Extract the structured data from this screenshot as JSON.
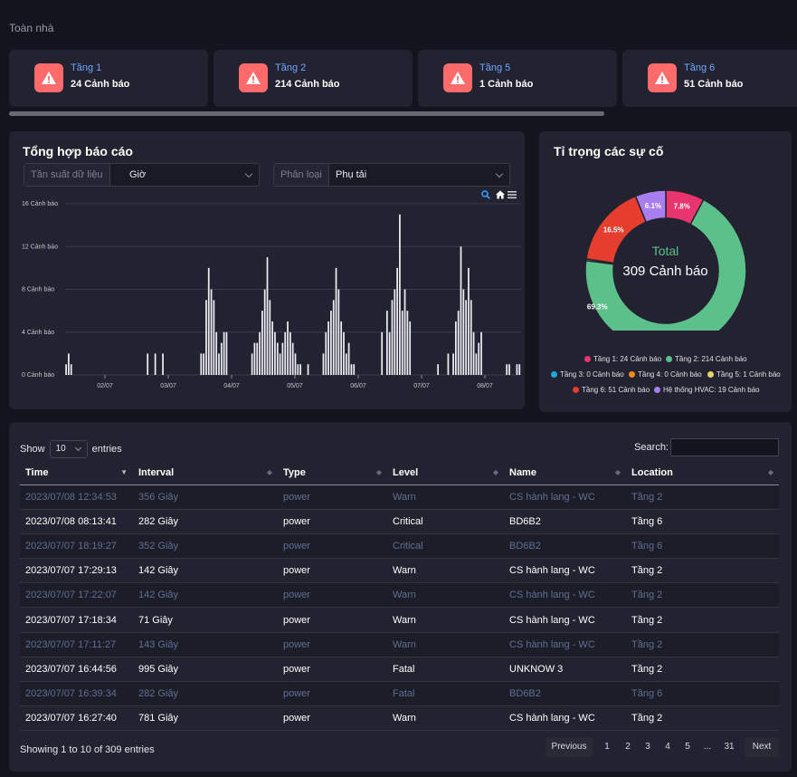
{
  "breadcrumb": "Toàn nhà",
  "alert_cards": [
    {
      "name": "Tầng 1",
      "count": "24 Cảnh báo"
    },
    {
      "name": "Tầng 2",
      "count": "214 Cảnh báo"
    },
    {
      "name": "Tầng 5",
      "count": "1 Cảnh báo"
    },
    {
      "name": "Tầng 6",
      "count": "51 Cảnh báo"
    }
  ],
  "report": {
    "title": "Tổng hợp báo cáo",
    "freq_label": "Tần suất dữ liệu",
    "freq_value": "Giờ",
    "class_label": "Phân loại",
    "class_value": "Phụ tải"
  },
  "chart_data": {
    "type": "bar",
    "ylim": [
      0,
      16
    ],
    "yticks": [
      "16 Cảnh báo",
      "12 Cảnh báo",
      "8 Cảnh báo",
      "4 Cảnh báo",
      "0 Cảnh báo"
    ],
    "xticks": [
      "02/07",
      "03/07",
      "04/07",
      "05/07",
      "06/07",
      "07/07",
      "08/07"
    ],
    "values": [
      1,
      2,
      1,
      0,
      0,
      0,
      0,
      0,
      0,
      0,
      0,
      0,
      0,
      0,
      0,
      0,
      0,
      0,
      0,
      0,
      0,
      0,
      0,
      0,
      0,
      0,
      0,
      0,
      0,
      0,
      0,
      0,
      2,
      0,
      0,
      2,
      0,
      0,
      2,
      0,
      0,
      0,
      0,
      0,
      0,
      0,
      0,
      0,
      0,
      0,
      0,
      0,
      0,
      2,
      2,
      7,
      10,
      8,
      7,
      4,
      2,
      3,
      4,
      4,
      0,
      0,
      0,
      0,
      0,
      0,
      0,
      0,
      0,
      2,
      3,
      3,
      4,
      6,
      8,
      11,
      7,
      5,
      4,
      3,
      2,
      3,
      4,
      5,
      4,
      3,
      2,
      1,
      1,
      0,
      0,
      1,
      0,
      0,
      0,
      0,
      0,
      2,
      4,
      5,
      6,
      7,
      10,
      8,
      5,
      4,
      2,
      3,
      1,
      1,
      0,
      0,
      0,
      0,
      0,
      0,
      0,
      0,
      0,
      0,
      4,
      0,
      6,
      4,
      7,
      8,
      10,
      15,
      6,
      8,
      6,
      5,
      0,
      0,
      0,
      0,
      0,
      0,
      0,
      0,
      0,
      0,
      1,
      0,
      0,
      0,
      2,
      0,
      2,
      5,
      6,
      12,
      8,
      7,
      10,
      7,
      4,
      2,
      3,
      4,
      0,
      0,
      0,
      0,
      0,
      0,
      0,
      0,
      0,
      1,
      1,
      0,
      0,
      1,
      1
    ]
  },
  "incidents": {
    "title": "Tỉ trọng các sự cố",
    "total_label": "Total",
    "total_value": "309 Cảnh báo",
    "slices": [
      {
        "label": "Tầng 1: 24 Cảnh báo",
        "value": 24,
        "pct": "7.8%",
        "color": "#e8356d"
      },
      {
        "label": "Tầng 2: 214 Cảnh báo",
        "value": 214,
        "pct": "69.3%",
        "color": "#5bc08a"
      },
      {
        "label": "Tầng 3: 0 Cảnh báo",
        "value": 0,
        "pct": "",
        "color": "#1ea7d8"
      },
      {
        "label": "Tầng 4: 0 Cảnh báo",
        "value": 0,
        "pct": "",
        "color": "#f08c1a"
      },
      {
        "label": "Tầng 5: 1 Cảnh báo",
        "value": 1,
        "pct": "",
        "color": "#e6d36a"
      },
      {
        "label": "Tầng 6: 51 Cảnh báo",
        "value": 51,
        "pct": "16.5%",
        "color": "#e53e2e"
      },
      {
        "label": "Hệ thống HVAC: 19 Cảnh báo",
        "value": 19,
        "pct": "6.1%",
        "color": "#a97fef"
      }
    ]
  },
  "table": {
    "show_label": "Show",
    "length_value": "10",
    "entries_label": "entries",
    "search_label": "Search:",
    "columns": [
      "Time",
      "Interval",
      "Type",
      "Level",
      "Name",
      "Location"
    ],
    "rows": [
      [
        "2023/07/08 12:34:53",
        "356 Giây",
        "power",
        "Warn",
        "CS hành lang - WC",
        "Tầng 2"
      ],
      [
        "2023/07/08 08:13:41",
        "282 Giây",
        "power",
        "Critical",
        "BD6B2",
        "Tầng 6"
      ],
      [
        "2023/07/07 18:19:27",
        "352 Giây",
        "power",
        "Critical",
        "BD6B2",
        "Tầng 6"
      ],
      [
        "2023/07/07 17:29:13",
        "142 Giây",
        "power",
        "Warn",
        "CS hành lang - WC",
        "Tầng 2"
      ],
      [
        "2023/07/07 17:22:07",
        "142 Giây",
        "power",
        "Warn",
        "CS hành lang - WC",
        "Tầng 2"
      ],
      [
        "2023/07/07 17:18:34",
        "71 Giây",
        "power",
        "Warn",
        "CS hành lang - WC",
        "Tầng 2"
      ],
      [
        "2023/07/07 17:11:27",
        "143 Giây",
        "power",
        "Warn",
        "CS hành lang - WC",
        "Tầng 2"
      ],
      [
        "2023/07/07 16:44:56",
        "995 Giây",
        "power",
        "Fatal",
        "UNKNOW 3",
        "Tầng 2"
      ],
      [
        "2023/07/07 16:39:34",
        "282 Giây",
        "power",
        "Fatal",
        "BD6B2",
        "Tầng 6"
      ],
      [
        "2023/07/07 16:27:40",
        "781 Giây",
        "power",
        "Warn",
        "CS hành lang - WC",
        "Tầng 2"
      ]
    ],
    "info": "Showing 1 to 10 of 309 entries",
    "pagination": {
      "previous": "Previous",
      "pages": [
        "1",
        "2",
        "3",
        "4",
        "5",
        "...",
        "31"
      ],
      "next": "Next"
    }
  }
}
